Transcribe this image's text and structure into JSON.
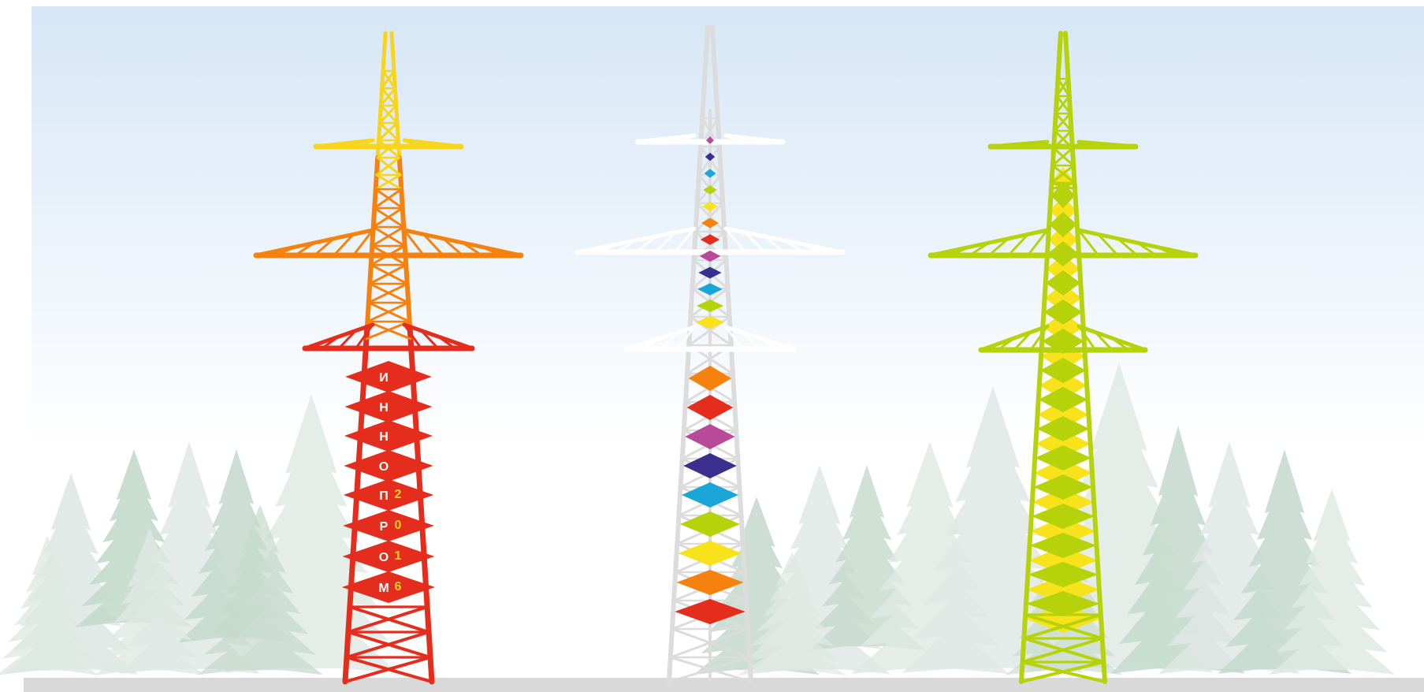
{
  "scene": {
    "sky_top": "#d6e6f6",
    "sky_bottom": "#ffffff",
    "ground_color": "#d9d9d9",
    "tree_color_dark": "#c4d9cc",
    "tree_color_light": "#dfe8e4"
  },
  "towers": [
    {
      "id": "red-yellow",
      "colors": {
        "top": "#f7d51c",
        "middle": "#f5820f",
        "lower": "#e42d1c",
        "body": "#e42d1c"
      },
      "vertical_text": [
        "И",
        "Н",
        "Н",
        "О",
        "П",
        "Р",
        "О",
        "М"
      ],
      "year_digits": [
        "2",
        "0",
        "1",
        "6"
      ],
      "text_color": "#ffffff",
      "digit_color": "#f7d51c"
    },
    {
      "id": "white-rainbow",
      "colors": {
        "body": "#dcdcdc",
        "arms": "#ffffff"
      },
      "diamond_colors": [
        "#f5820f",
        "#e42d1c",
        "#b84a9a",
        "#3a2f8f",
        "#1ba6d9",
        "#b5d20b",
        "#f7e21c",
        "#f5820f",
        "#e42d1c"
      ]
    },
    {
      "id": "green-yellow",
      "colors": {
        "body": "#b5d20b",
        "fill": "#f7e21c"
      }
    }
  ]
}
